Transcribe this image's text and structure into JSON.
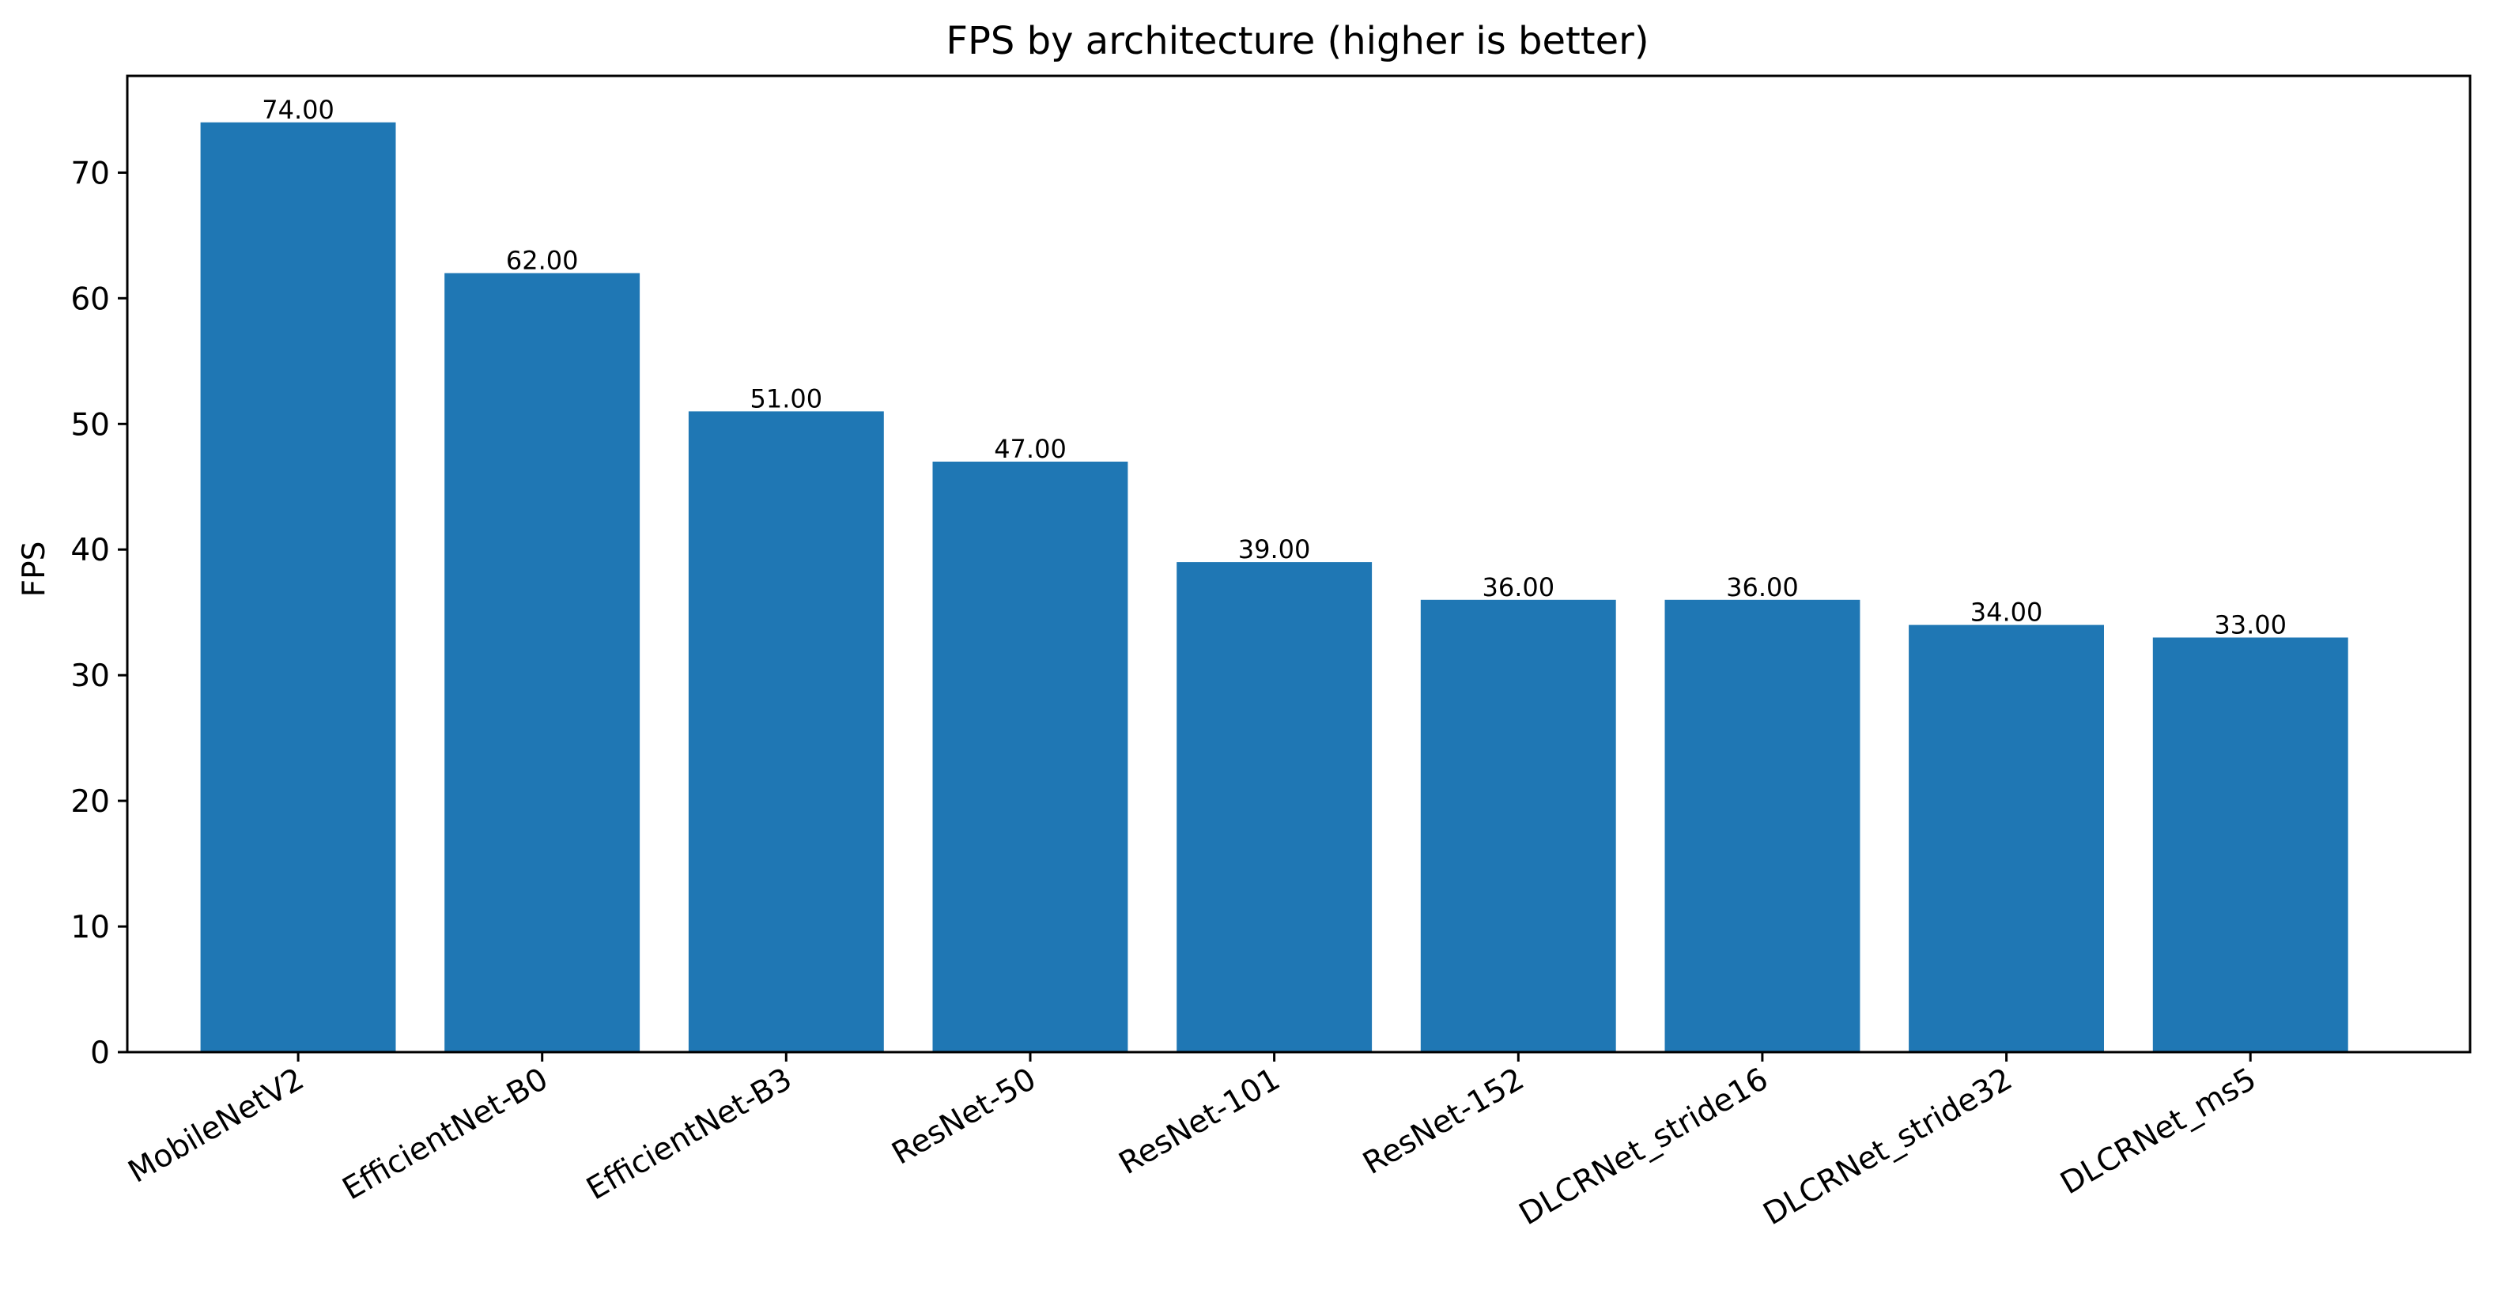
{
  "chart_data": {
    "type": "bar",
    "title": "FPS by architecture (higher is better)",
    "xlabel": "",
    "ylabel": "FPS",
    "categories": [
      "MobileNetV2",
      "EfficientNet-B0",
      "EfficientNet-B3",
      "ResNet-50",
      "ResNet-101",
      "ResNet-152",
      "DLCRNet_stride16",
      "DLCRNet_stride32",
      "DLCRNet_ms5"
    ],
    "values": [
      74,
      62,
      51,
      47,
      39,
      36,
      36,
      34,
      33
    ],
    "value_labels": [
      "74.00",
      "62.00",
      "51.00",
      "47.00",
      "39.00",
      "36.00",
      "36.00",
      "34.00",
      "33.00"
    ],
    "ylim": [
      0,
      77.7
    ],
    "yticks": [
      0,
      10,
      20,
      30,
      40,
      50,
      60,
      70
    ],
    "bar_color": "#1f77b4",
    "grid": false,
    "legend": "none"
  }
}
